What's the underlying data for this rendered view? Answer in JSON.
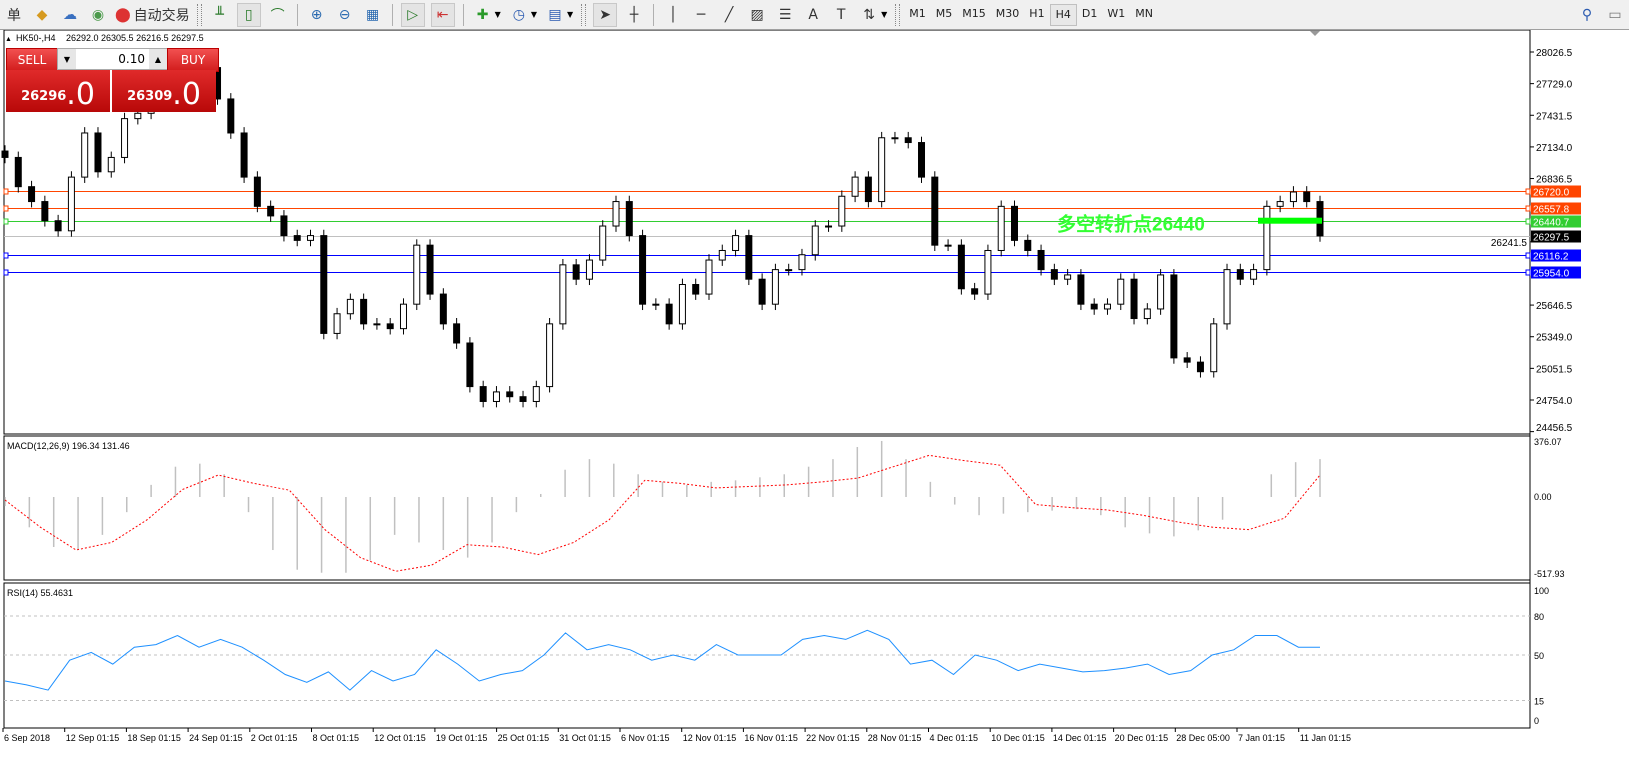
{
  "toolbar": {
    "left_items": [
      {
        "label": "单",
        "icon": "order-icon"
      },
      {
        "label": "",
        "icon": "history-book-icon"
      },
      {
        "label": "",
        "icon": "market-cloud-icon"
      },
      {
        "label": "",
        "icon": "signals-icon"
      },
      {
        "label": "自动交易",
        "icon": "autotrading-icon"
      }
    ],
    "chart_tools": [
      "bar-chart-icon",
      "candlestick-icon",
      "line-chart-icon",
      "zoom-in-icon",
      "zoom-out-icon",
      "tile-windows-icon",
      "autoscroll-icon",
      "chart-shift-icon",
      "new-indicator-icon",
      "periods-clock-icon",
      "templates-icon"
    ],
    "draw_tools": [
      "cursor-icon",
      "crosshair-icon",
      "vertical-line-icon",
      "horizontal-line-icon",
      "trendline-icon",
      "equidistant-channel-icon",
      "fibonacci-icon",
      "text-icon",
      "text-label-icon",
      "arrows-icon"
    ],
    "timeframes": [
      "M1",
      "M5",
      "M15",
      "M30",
      "H1",
      "H4",
      "D1",
      "W1",
      "MN"
    ],
    "active_timeframe": "H4"
  },
  "header": {
    "symbol": "HK50-,H4",
    "ohlc": "26292.0 26305.5 26216.5 26297.5"
  },
  "trade_panel": {
    "sell_label": "SELL",
    "buy_label": "BUY",
    "lot": "0.10",
    "sell_price_main": "26296",
    "sell_price_frac": ".0",
    "buy_price_main": "26309",
    "buy_price_frac": ".0"
  },
  "annotation": {
    "text": "多空转折点26440",
    "color": "#33ff33"
  },
  "chart_data": [
    {
      "type": "candlestick",
      "title": "HK50-,H4",
      "ylim": [
        24456.5,
        28200
      ],
      "y_tick_labels": [
        "28026.5",
        "27729.0",
        "27431.5",
        "27134.0",
        "26836.5",
        "26241.5",
        "25646.5",
        "25349.0",
        "25051.5",
        "24754.0",
        "24456.5"
      ],
      "x_tick_labels": [
        "6 Sep 2018",
        "12 Sep 01:15",
        "18 Sep 01:15",
        "24 Sep 01:15",
        "2 Oct 01:15",
        "8 Oct 01:15",
        "12 Oct 01:15",
        "19 Oct 01:15",
        "25 Oct 01:15",
        "31 Oct 01:15",
        "6 Nov 01:15",
        "12 Nov 01:15",
        "16 Nov 01:15",
        "22 Nov 01:15",
        "28 Nov 01:15",
        "4 Dec 01:15",
        "10 Dec 01:15",
        "14 Dec 01:15",
        "20 Dec 01:15",
        "28 Dec 05:00",
        "7 Jan 01:15",
        "11 Jan 01:15"
      ],
      "close": [
        27035,
        26760,
        26620,
        26440,
        26345,
        26850,
        27265,
        26900,
        27035,
        27400,
        27450,
        27540,
        27720,
        27770,
        27860,
        27880,
        27585,
        27265,
        26850,
        26575,
        26485,
        26300,
        26255,
        26300,
        25380,
        25565,
        25700,
        25470,
        25470,
        25425,
        25655,
        26210,
        25750,
        25470,
        25290,
        24880,
        24740,
        24830,
        24785,
        24740,
        24880,
        25470,
        26025,
        25890,
        26070,
        26390,
        26620,
        26300,
        25655,
        25655,
        25470,
        25840,
        25750,
        26070,
        26160,
        26300,
        25890,
        25655,
        25980,
        25980,
        26120,
        26390,
        26390,
        26670,
        26850,
        26620,
        27220,
        27220,
        27175,
        26850,
        26210,
        26210,
        25800,
        25750,
        26160,
        26575,
        26255,
        26160,
        25980,
        25890,
        25930,
        25655,
        25610,
        25655,
        25890,
        25520,
        25610,
        25930,
        25150,
        25110,
        25020,
        25470,
        25980,
        25890,
        25980,
        26575,
        26620,
        26710,
        26620,
        26297.5
      ],
      "levels": [
        {
          "value": "26720.0",
          "color": "#ff4500"
        },
        {
          "value": "26557.8",
          "color": "#ff4500"
        },
        {
          "value": "26440.7",
          "color": "#32cd32"
        },
        {
          "value": "26297.5",
          "color": "#000000",
          "line_color": "#c0c0c0"
        },
        {
          "value": "26116.2",
          "color": "#0000ff"
        },
        {
          "value": "25954.0",
          "color": "#0000ff"
        }
      ],
      "marked_level": 26440
    },
    {
      "type": "bar",
      "title": "MACD(12,26,9) 196.34 131.46",
      "ylim": [
        -517.93,
        376.07
      ],
      "y_tick_labels": [
        "376.07",
        "0.00",
        "-517.93"
      ],
      "histogram": [
        -60,
        -200,
        -330,
        -350,
        -250,
        -100,
        80,
        200,
        220,
        150,
        -100,
        -350,
        -480,
        -500,
        -500,
        -420,
        -250,
        -300,
        -350,
        -400,
        -300,
        -100,
        20,
        180,
        250,
        220,
        150,
        100,
        80,
        100,
        110,
        130,
        150,
        200,
        250,
        330,
        370,
        250,
        100,
        -50,
        -120,
        -110,
        -100,
        -90,
        -80,
        -120,
        -200,
        -240,
        -260,
        -220,
        -150,
        0,
        150,
        230,
        250
      ],
      "signal": [
        -20,
        -200,
        -350,
        -300,
        -150,
        50,
        145,
        90,
        45,
        -215,
        -400,
        -490,
        -450,
        -315,
        -330,
        -380,
        -300,
        -150,
        110,
        90,
        60,
        70,
        80,
        100,
        125,
        200,
        275,
        240,
        210,
        -50,
        -70,
        -85,
        -120,
        -165,
        -200,
        -215,
        -140,
        145
      ]
    },
    {
      "type": "line",
      "title": "RSI(14) 55.4631",
      "ylim": [
        0,
        100
      ],
      "y_tick_labels": [
        "100",
        "80",
        "50",
        "15",
        "0"
      ],
      "levels": [
        80,
        50,
        15
      ],
      "values": [
        30,
        27,
        23,
        46,
        52,
        43,
        56,
        58,
        65,
        56,
        62,
        56,
        46,
        35,
        29,
        37,
        23,
        38,
        30,
        35,
        54,
        43,
        30,
        35,
        38,
        50,
        67,
        54,
        58,
        54,
        46,
        50,
        46,
        58,
        50,
        50,
        50,
        62,
        65,
        62,
        69,
        62,
        43,
        46,
        35,
        50,
        46,
        38,
        43,
        40,
        37,
        38,
        40,
        43,
        35,
        38,
        50,
        54,
        65,
        65,
        56,
        56
      ],
      "color": "#1e90ff"
    }
  ]
}
